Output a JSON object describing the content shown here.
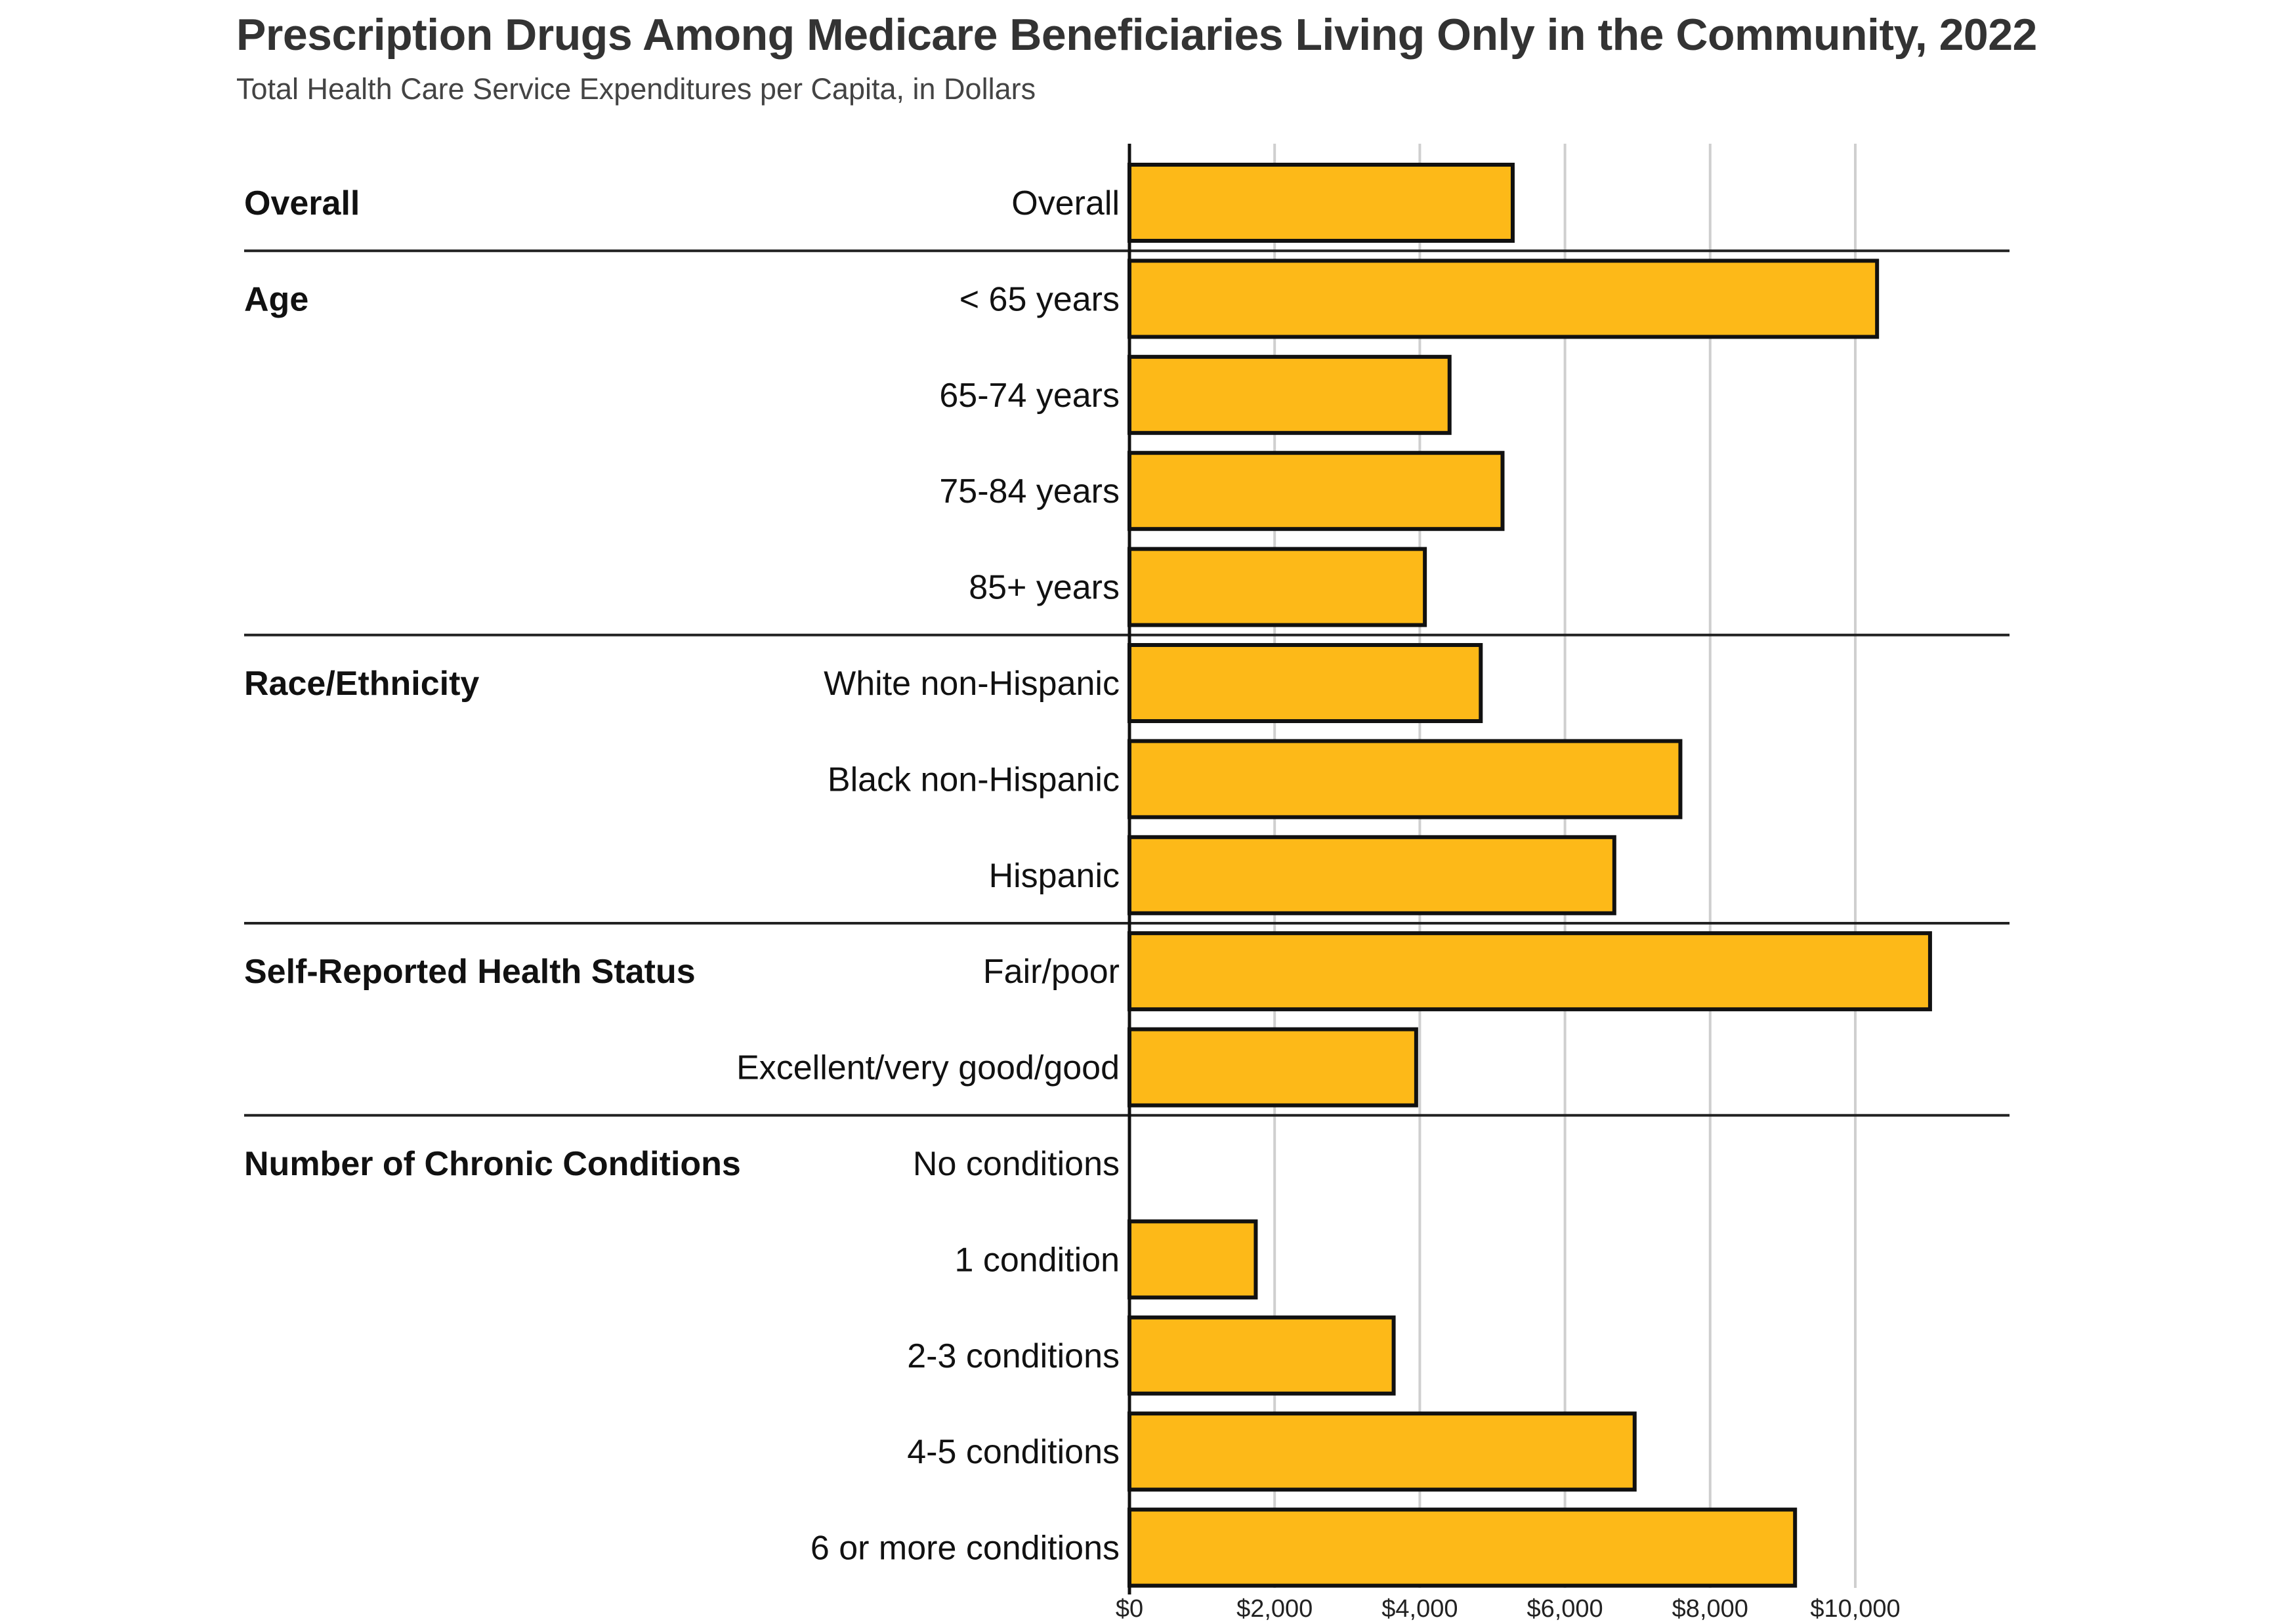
{
  "chart_data": {
    "type": "bar",
    "orientation": "horizontal",
    "title": "Prescription Drugs Among Medicare Beneficiaries Living Only in the Community, 2022",
    "subtitle": "Total Health Care Service Expenditures per Capita, in Dollars",
    "xlabel": "",
    "ylabel": "",
    "xlim": [
      0,
      12000
    ],
    "x_ticks": [
      "$0",
      "$2,000",
      "$4,000",
      "$6,000",
      "$8,000",
      "$10,000"
    ],
    "x_tick_values": [
      0,
      2000,
      4000,
      6000,
      8000,
      10000
    ],
    "grid": true,
    "bar_color": "#FDB918",
    "bar_outline": "#111111",
    "groups": [
      {
        "name": "Overall",
        "categories": [
          "Overall"
        ],
        "values": [
          5280
        ]
      },
      {
        "name": "Age",
        "categories": [
          "< 65 years",
          "65-74 years",
          "75-84 years",
          "85+ years"
        ],
        "values": [
          10300,
          4410,
          5140,
          4070
        ]
      },
      {
        "name": "Race/Ethnicity",
        "categories": [
          "White non-Hispanic",
          "Black non-Hispanic",
          "Hispanic"
        ],
        "values": [
          4840,
          7590,
          6680
        ]
      },
      {
        "name": "Self-Reported Health Status",
        "categories": [
          "Fair/poor",
          "Excellent/very good/good"
        ],
        "values": [
          11030,
          3950
        ]
      },
      {
        "name": "Number of Chronic Conditions",
        "categories": [
          "No conditions",
          "1 condition",
          "2-3 conditions",
          "4-5 conditions",
          "6 or more conditions"
        ],
        "values": [
          null,
          1740,
          3640,
          6960,
          9170
        ]
      }
    ]
  }
}
